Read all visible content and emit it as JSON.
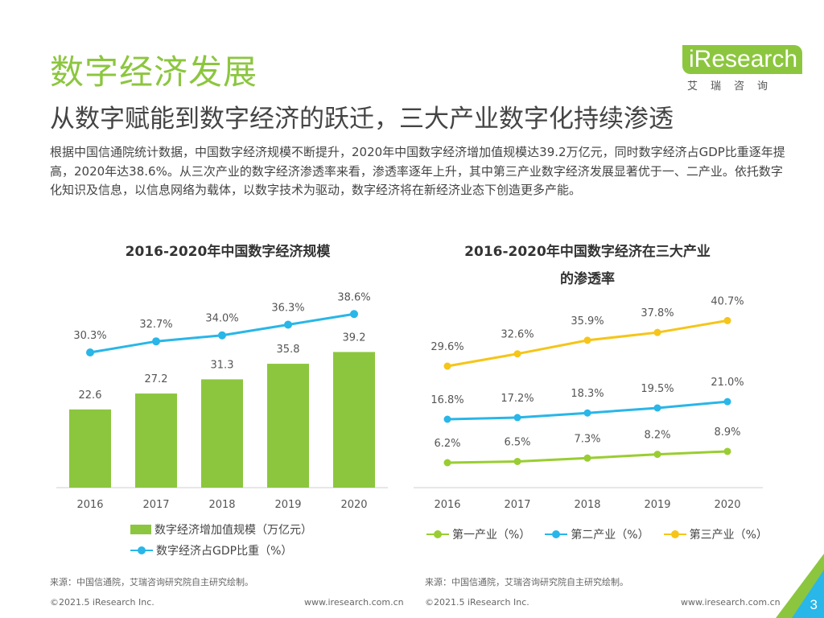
{
  "header": {
    "title": "数字经济发展",
    "subtitle": "从数字赋能到数字经济的跃迁，三大产业数字化持续渗透",
    "body": "根据中国信通院统计数据，中国数字经济规模不断提升，2020年中国数字经济增加值规模达39.2万亿元，同时数字经济占GDP比重逐年提高，2020年达38.6%。从三次产业的数字经济渗透率来看，渗透率逐年上升，其中第三产业数字经济发展显著优于一、二产业。依托数字化知识及信息，以信息网络为载体，以数字技术为驱动，数字经济将在新经济业态下创造更多产能。"
  },
  "logo": {
    "main": "iResearch",
    "sub": "艾瑞咨询"
  },
  "colors": {
    "accent_green": "#8cc63f",
    "line_blue": "#29b6e8",
    "line_yellow": "#f5c518",
    "line_green": "#9acd32"
  },
  "chart_data": [
    {
      "type": "bar",
      "title": "2016-2020年中国数字经济规模",
      "categories": [
        "2016",
        "2017",
        "2018",
        "2019",
        "2020"
      ],
      "ylim": [
        0,
        50
      ],
      "series": [
        {
          "name": "数字经济增加值规模（万亿元）",
          "type": "bar",
          "values": [
            22.6,
            27.2,
            31.3,
            35.8,
            39.2
          ],
          "labels": [
            "22.6",
            "27.2",
            "31.3",
            "35.8",
            "39.2"
          ]
        },
        {
          "name": "数字经济占GDP比重（%）",
          "type": "line",
          "values": [
            30.3,
            32.7,
            34.0,
            36.3,
            38.6
          ],
          "labels": [
            "30.3%",
            "32.7%",
            "34.0%",
            "36.3%",
            "38.6%"
          ]
        }
      ],
      "grid": false,
      "legend": "bottom"
    },
    {
      "type": "line",
      "title": "2016-2020年中国数字经济在三大产业的渗透率",
      "categories": [
        "2016",
        "2017",
        "2018",
        "2019",
        "2020"
      ],
      "series": [
        {
          "name": "第一产业（%）",
          "values": [
            6.2,
            6.5,
            7.3,
            8.2,
            8.9
          ],
          "labels": [
            "6.2%",
            "6.5%",
            "7.3%",
            "8.2%",
            "8.9%"
          ]
        },
        {
          "name": "第二产业（%）",
          "values": [
            16.8,
            17.2,
            18.3,
            19.5,
            21.0
          ],
          "labels": [
            "16.8%",
            "17.2%",
            "18.3%",
            "19.5%",
            "21.0%"
          ]
        },
        {
          "name": "第三产业（%）",
          "values": [
            29.6,
            32.6,
            35.9,
            37.8,
            40.7
          ],
          "labels": [
            "29.6%",
            "32.6%",
            "35.9%",
            "37.8%",
            "40.7%"
          ]
        }
      ],
      "grid": false,
      "legend": "bottom"
    }
  ],
  "chart1": {
    "title": "2016-2020年中国数字经济规模",
    "legend": [
      "数字经济增加值规模（万亿元）",
      "数字经济占GDP比重（%）"
    ]
  },
  "chart2": {
    "title_line1": "2016-2020年中国数字经济在三大产业",
    "title_line2": "的渗透率",
    "legend": [
      "第一产业（%）",
      "第二产业（%）",
      "第三产业（%）"
    ]
  },
  "footer": {
    "source_left": "来源：中国信通院，艾瑞咨询研究院自主研究绘制。",
    "source_right": "来源：中国信通院，艾瑞咨询研究院自主研究绘制。",
    "copyright_left": "©2021.5 iResearch Inc.",
    "url_left": "www.iresearch.com.cn",
    "copyright_right": "©2021.5 iResearch Inc.",
    "url_right": "www.iresearch.com.cn",
    "page_number": "3"
  }
}
